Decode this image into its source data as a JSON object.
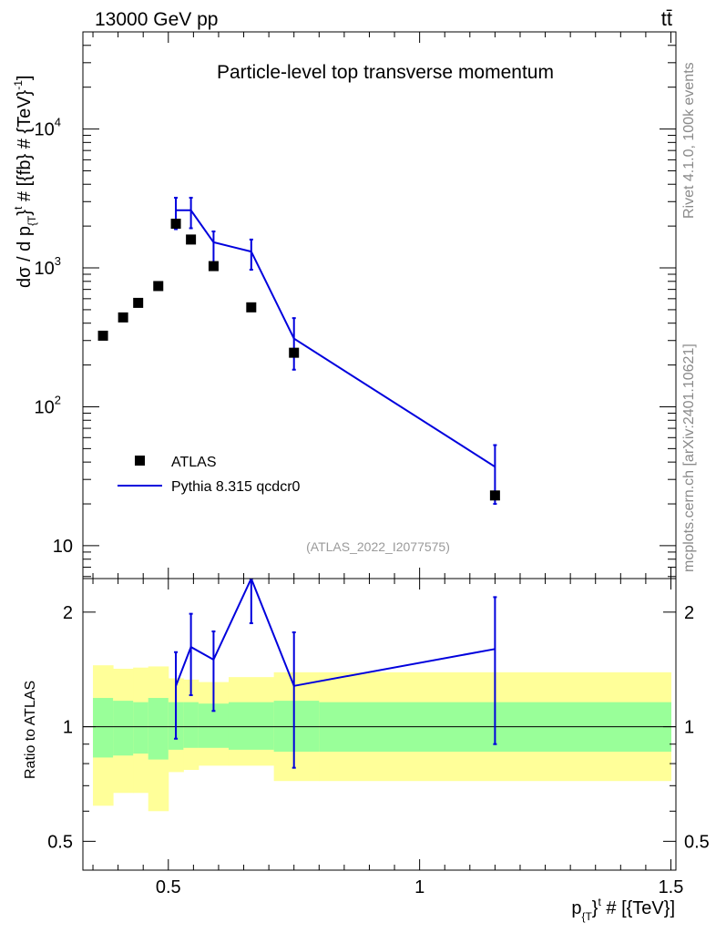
{
  "header": {
    "energy_label": "13000 GeV pp",
    "process_label": "tt̄"
  },
  "side_text": {
    "rivet": "Rivet 4.1.0,  100k events",
    "source": "mcplots.cern.ch [arXiv:2401.10621]"
  },
  "chart_data": [
    {
      "type": "scatter",
      "panel": "main",
      "title": "Particle-level top transverse momentum",
      "xlabel": "p_{T}^t # [{TeV}]",
      "ylabel": "dσ / d p_{T}^t # [{fb} # {TeV}^-1]",
      "yscale": "log",
      "xlim": [
        0.33,
        1.51
      ],
      "ylim": [
        5.8,
        50000
      ],
      "ytick_labels": [
        "10",
        "10^2",
        "10^3",
        "10^4"
      ],
      "watermark": "(ATLAS_2022_I2077575)",
      "legend": {
        "position": "bottom-left",
        "entries": [
          "ATLAS",
          "Pythia 8.315 qcdcr0"
        ]
      },
      "series": [
        {
          "name": "ATLAS",
          "style": "markers",
          "color": "#000000",
          "x": [
            0.37,
            0.41,
            0.44,
            0.48,
            0.515,
            0.545,
            0.59,
            0.665,
            0.75,
            1.15
          ],
          "xerr": [
            0.02,
            0.02,
            0.015,
            0.02,
            0.015,
            0.015,
            0.03,
            0.035,
            0.05,
            0.35
          ],
          "y": [
            325,
            440,
            560,
            740,
            2080,
            1600,
            1030,
            520,
            245,
            23
          ]
        },
        {
          "name": "Pythia 8.315 qcdcr0",
          "style": "line",
          "color": "#0000dd",
          "x": [
            0.515,
            0.545,
            0.59,
            0.665,
            0.75,
            1.15
          ],
          "y": [
            2600,
            2600,
            1530,
            1310,
            310,
            37
          ],
          "ylow": [
            1900,
            1930,
            1090,
            970,
            185,
            20
          ],
          "yhigh": [
            3200,
            3200,
            1830,
            1600,
            435,
            53
          ]
        }
      ]
    },
    {
      "type": "line",
      "panel": "ratio",
      "ylabel": "Ratio to ATLAS",
      "yscale": "log",
      "ylim": [
        0.42,
        2.45
      ],
      "ytick_labels": [
        "0.5",
        "1",
        "2"
      ],
      "xtick_labels": [
        "0.5",
        "1",
        "1.5"
      ],
      "reference_line": 1,
      "bands": {
        "edges": [
          0.35,
          0.39,
          0.43,
          0.46,
          0.5,
          0.53,
          0.56,
          0.62,
          0.71,
          0.8,
          1.5
        ],
        "green_low": [
          0.83,
          0.84,
          0.85,
          0.82,
          0.87,
          0.88,
          0.88,
          0.87,
          0.86,
          0.86
        ],
        "green_high": [
          1.19,
          1.17,
          1.16,
          1.19,
          1.16,
          1.16,
          1.15,
          1.16,
          1.17,
          1.16
        ],
        "yellow_low": [
          0.62,
          0.67,
          0.67,
          0.6,
          0.76,
          0.77,
          0.79,
          0.79,
          0.72,
          0.72
        ],
        "yellow_high": [
          1.45,
          1.42,
          1.43,
          1.44,
          1.34,
          1.33,
          1.31,
          1.35,
          1.39,
          1.39
        ]
      },
      "series": [
        {
          "name": "Pythia 8.315 qcdcr0",
          "color": "#0000dd",
          "x": [
            0.515,
            0.545,
            0.59,
            0.665,
            0.75,
            1.15
          ],
          "y": [
            1.28,
            1.62,
            1.5,
            2.45,
            1.28,
            1.6
          ],
          "ylow": [
            0.93,
            1.21,
            1.1,
            1.87,
            0.78,
            0.9
          ],
          "yhigh": [
            1.57,
            1.98,
            1.78,
            2.45,
            1.77,
            2.19
          ]
        }
      ]
    }
  ]
}
